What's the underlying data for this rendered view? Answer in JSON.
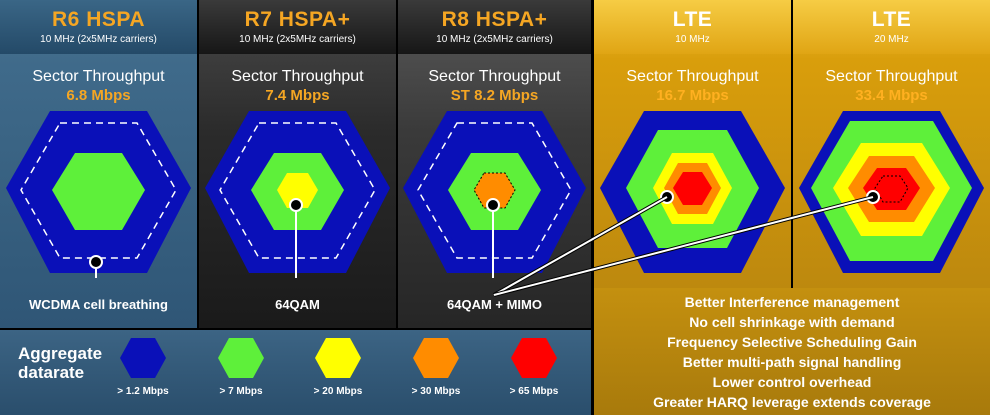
{
  "panels": [
    {
      "title": "R6 HSPA",
      "subtitle": "10 MHz (2x5MHz carriers)",
      "st_label": "Sector Throughput",
      "st_value": "6.8 Mbps",
      "callout": "WCDMA cell breathing"
    },
    {
      "title": "R7 HSPA+",
      "subtitle": "10 MHz (2x5MHz carriers)",
      "st_label": "Sector Throughput",
      "st_value": "7.4 Mbps",
      "callout": "64QAM"
    },
    {
      "title": "R8 HSPA+",
      "subtitle": "10 MHz (2x5MHz carriers)",
      "st_label": "Sector Throughput",
      "st_value": "ST 8.2 Mbps",
      "callout": "64QAM + MIMO"
    },
    {
      "title": "LTE",
      "subtitle": "10 MHz",
      "st_label": "Sector Throughput",
      "st_value": "16.7 Mbps",
      "callout": ""
    },
    {
      "title": "LTE",
      "subtitle": "20 MHz",
      "st_label": "Sector Throughput",
      "st_value": "33.4 Mbps",
      "callout": ""
    }
  ],
  "legend": {
    "label_line1": "Aggregate",
    "label_line2": "datarate",
    "items": [
      {
        "color": "#0a10b8",
        "label": "> 1.2 Mbps"
      },
      {
        "color": "#5ef03a",
        "label": "> 7 Mbps"
      },
      {
        "color": "#ffff00",
        "label": "> 20 Mbps"
      },
      {
        "color": "#ff8c00",
        "label": "> 30 Mbps"
      },
      {
        "color": "#ff0000",
        "label": "> 65 Mbps"
      }
    ]
  },
  "lte_benefits": [
    "Better Interference management",
    "No cell shrinkage with demand",
    "Frequency Selective Scheduling Gain",
    "Better multi-path signal handling",
    "Lower control overhead",
    "Greater HARQ leverage extends coverage"
  ],
  "colors": {
    "blue": "#0a10b8",
    "green": "#5ef03a",
    "yellow": "#ffff00",
    "orange": "#ff8c00",
    "red": "#ff0000",
    "accent": "#f5a623"
  }
}
